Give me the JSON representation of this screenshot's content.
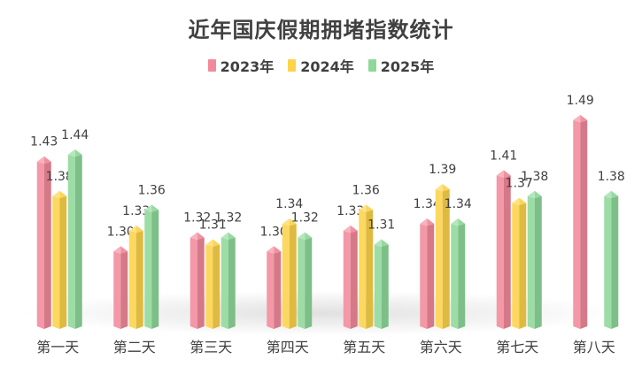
{
  "chart_data": {
    "type": "bar",
    "title": "近年国庆假期拥堵指数统计",
    "categories": [
      "第一天",
      "第二天",
      "第三天",
      "第四天",
      "第五天",
      "第六天",
      "第七天",
      "第八天"
    ],
    "series": [
      {
        "name": "2023年",
        "color": "#f28a9b",
        "values": [
          1.43,
          1.3,
          1.32,
          1.3,
          1.33,
          1.34,
          1.41,
          1.49
        ]
      },
      {
        "name": "2024年",
        "color": "#fdd34a",
        "values": [
          1.38,
          1.33,
          1.31,
          1.34,
          1.36,
          1.39,
          1.37,
          null
        ]
      },
      {
        "name": "2025年",
        "color": "#8fd89a",
        "values": [
          1.44,
          1.36,
          1.32,
          1.32,
          1.31,
          1.34,
          1.38,
          1.38
        ]
      }
    ],
    "ylim": [
      1.18,
      1.5
    ],
    "legend": "top-center",
    "grid": false
  }
}
